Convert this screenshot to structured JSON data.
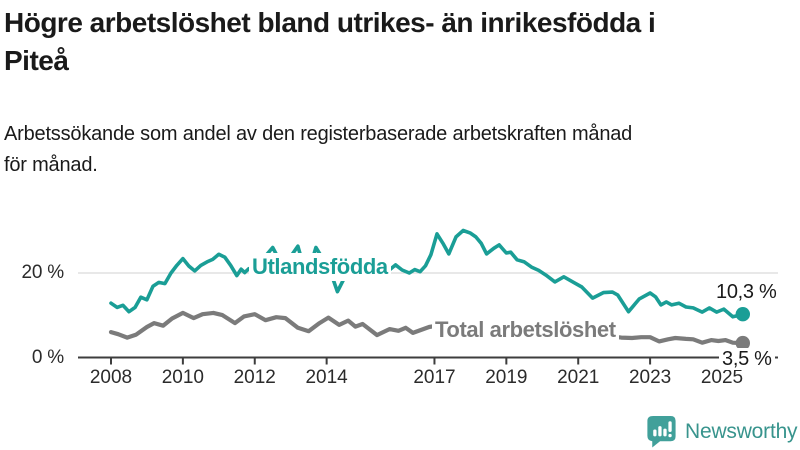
{
  "title": {
    "line1": "Högre arbetslöshet bland utrikes- än inrikesfödda i",
    "line2": "Piteå"
  },
  "subtitle": {
    "line1": "Arbetssökande som andel av den registerbaserade arbetskraften månad",
    "line2": "för månad."
  },
  "branding": {
    "name": "Newsworthy",
    "icon": "chart-speech-bubble-icon",
    "icon_color": "#41a09a",
    "text_color": "#38948d"
  },
  "chart_data": {
    "type": "line",
    "title": "Högre arbetslöshet bland utrikes- än inrikesfödda i Piteå",
    "subtitle": "Arbetssökande som andel av den registerbaserade arbetskraften månad för månad.",
    "xlabel": "",
    "ylabel": "",
    "xlim": [
      2007.1,
      2026.6
    ],
    "ylim": [
      0,
      32
    ],
    "grid": "single horizontal gridline at 20 %",
    "legend": "inline labels next to lines",
    "x_ticks": [
      2008,
      2010,
      2012,
      2014,
      2017,
      2019,
      2021,
      2023,
      2025
    ],
    "y_ticks": [
      {
        "value": 0,
        "label": "0 %"
      },
      {
        "value": 20,
        "label": "20 %"
      }
    ],
    "axis_color": "#3d3d3d",
    "gridline_color": "#d9d9d9",
    "series": [
      {
        "name": "Utlandsfödda",
        "color": "#1a9e96",
        "end_label": "10,3 %",
        "end_value": 10.3,
        "points": [
          [
            2008.0,
            12.9
          ],
          [
            2008.17,
            11.9
          ],
          [
            2008.33,
            12.4
          ],
          [
            2008.5,
            10.9
          ],
          [
            2008.67,
            11.9
          ],
          [
            2008.83,
            14.3
          ],
          [
            2009.0,
            13.7
          ],
          [
            2009.17,
            16.9
          ],
          [
            2009.33,
            17.8
          ],
          [
            2009.5,
            17.5
          ],
          [
            2009.67,
            20.0
          ],
          [
            2009.83,
            21.8
          ],
          [
            2010.0,
            23.4
          ],
          [
            2010.17,
            21.6
          ],
          [
            2010.33,
            20.5
          ],
          [
            2010.5,
            21.8
          ],
          [
            2010.67,
            22.6
          ],
          [
            2010.83,
            23.2
          ],
          [
            2011.0,
            24.4
          ],
          [
            2011.17,
            23.7
          ],
          [
            2011.33,
            21.8
          ],
          [
            2011.5,
            19.4
          ],
          [
            2011.62,
            20.9
          ],
          [
            2011.72,
            20.1
          ],
          [
            2011.83,
            21.0
          ],
          [
            2011.95,
            20.2
          ],
          [
            2012.1,
            21.5
          ],
          [
            2012.3,
            24.0
          ],
          [
            2012.5,
            26.0
          ],
          [
            2012.65,
            23.6
          ],
          [
            2012.85,
            22.3
          ],
          [
            2013.05,
            24.5
          ],
          [
            2013.2,
            26.3
          ],
          [
            2013.45,
            18.8
          ],
          [
            2013.7,
            26.0
          ],
          [
            2013.9,
            23.3
          ],
          [
            2014.1,
            20.5
          ],
          [
            2014.3,
            15.6
          ],
          [
            2014.55,
            19.8
          ],
          [
            2014.8,
            21.3
          ],
          [
            2015.0,
            21.8
          ],
          [
            2015.2,
            19.9
          ],
          [
            2015.45,
            18.8
          ],
          [
            2015.7,
            20.4
          ],
          [
            2015.92,
            21.9
          ],
          [
            2016.1,
            20.7
          ],
          [
            2016.3,
            20.0
          ],
          [
            2016.45,
            20.8
          ],
          [
            2016.6,
            20.3
          ],
          [
            2016.75,
            21.7
          ],
          [
            2016.9,
            24.3
          ],
          [
            2017.07,
            29.2
          ],
          [
            2017.25,
            26.8
          ],
          [
            2017.4,
            24.5
          ],
          [
            2017.6,
            28.5
          ],
          [
            2017.8,
            30.0
          ],
          [
            2018.0,
            29.4
          ],
          [
            2018.15,
            28.5
          ],
          [
            2018.3,
            27.0
          ],
          [
            2018.45,
            24.5
          ],
          [
            2018.65,
            25.8
          ],
          [
            2018.8,
            26.6
          ],
          [
            2019.0,
            24.7
          ],
          [
            2019.12,
            24.9
          ],
          [
            2019.3,
            23.1
          ],
          [
            2019.5,
            22.6
          ],
          [
            2019.7,
            21.4
          ],
          [
            2019.9,
            20.6
          ],
          [
            2020.1,
            19.5
          ],
          [
            2020.35,
            17.9
          ],
          [
            2020.6,
            19.1
          ],
          [
            2020.85,
            17.9
          ],
          [
            2021.1,
            16.7
          ],
          [
            2021.4,
            14.1
          ],
          [
            2021.7,
            15.4
          ],
          [
            2021.95,
            15.5
          ],
          [
            2022.1,
            14.8
          ],
          [
            2022.4,
            10.9
          ],
          [
            2022.7,
            13.9
          ],
          [
            2023.0,
            15.3
          ],
          [
            2023.15,
            14.4
          ],
          [
            2023.3,
            12.5
          ],
          [
            2023.45,
            13.2
          ],
          [
            2023.6,
            12.5
          ],
          [
            2023.8,
            12.9
          ],
          [
            2024.0,
            12.0
          ],
          [
            2024.2,
            11.8
          ],
          [
            2024.45,
            10.8
          ],
          [
            2024.65,
            11.8
          ],
          [
            2024.85,
            10.8
          ],
          [
            2025.05,
            11.5
          ],
          [
            2025.3,
            9.7
          ],
          [
            2025.45,
            10.0
          ],
          [
            2025.58,
            10.3
          ]
        ]
      },
      {
        "name": "Total arbetslöshet",
        "color": "#7b7b7b",
        "end_label": "3,5 %",
        "end_value": 3.5,
        "points": [
          [
            2008.0,
            6.1
          ],
          [
            2008.2,
            5.6
          ],
          [
            2008.45,
            4.8
          ],
          [
            2008.7,
            5.5
          ],
          [
            2009.0,
            7.3
          ],
          [
            2009.2,
            8.2
          ],
          [
            2009.45,
            7.6
          ],
          [
            2009.7,
            9.3
          ],
          [
            2010.0,
            10.6
          ],
          [
            2010.3,
            9.4
          ],
          [
            2010.55,
            10.3
          ],
          [
            2010.85,
            10.6
          ],
          [
            2011.1,
            10.1
          ],
          [
            2011.45,
            8.2
          ],
          [
            2011.7,
            9.8
          ],
          [
            2012.0,
            10.3
          ],
          [
            2012.3,
            8.9
          ],
          [
            2012.6,
            9.6
          ],
          [
            2012.85,
            9.4
          ],
          [
            2013.2,
            7.1
          ],
          [
            2013.5,
            6.3
          ],
          [
            2013.8,
            8.2
          ],
          [
            2014.05,
            9.5
          ],
          [
            2014.35,
            7.8
          ],
          [
            2014.6,
            8.8
          ],
          [
            2014.8,
            7.4
          ],
          [
            2015.0,
            8.0
          ],
          [
            2015.4,
            5.4
          ],
          [
            2015.75,
            6.8
          ],
          [
            2016.0,
            6.4
          ],
          [
            2016.2,
            7.1
          ],
          [
            2016.4,
            5.9
          ],
          [
            2016.85,
            7.3
          ],
          [
            2017.0,
            7.5
          ],
          [
            2017.4,
            6.1
          ],
          [
            2017.8,
            6.9
          ],
          [
            2018.1,
            6.8
          ],
          [
            2018.5,
            5.6
          ],
          [
            2018.9,
            6.2
          ],
          [
            2019.2,
            5.9
          ],
          [
            2019.5,
            5.2
          ],
          [
            2019.9,
            5.7
          ],
          [
            2020.3,
            6.4
          ],
          [
            2020.6,
            6.8
          ],
          [
            2020.9,
            6.1
          ],
          [
            2021.2,
            5.5
          ],
          [
            2021.5,
            4.8
          ],
          [
            2021.9,
            5.1
          ],
          [
            2022.2,
            4.8
          ],
          [
            2022.5,
            4.7
          ],
          [
            2022.75,
            4.9
          ],
          [
            2023.0,
            4.9
          ],
          [
            2023.25,
            3.9
          ],
          [
            2023.5,
            4.4
          ],
          [
            2023.7,
            4.7
          ],
          [
            2024.0,
            4.5
          ],
          [
            2024.2,
            4.4
          ],
          [
            2024.45,
            3.6
          ],
          [
            2024.7,
            4.2
          ],
          [
            2024.9,
            4.0
          ],
          [
            2025.1,
            4.2
          ],
          [
            2025.3,
            3.6
          ],
          [
            2025.58,
            3.5
          ]
        ]
      }
    ]
  }
}
